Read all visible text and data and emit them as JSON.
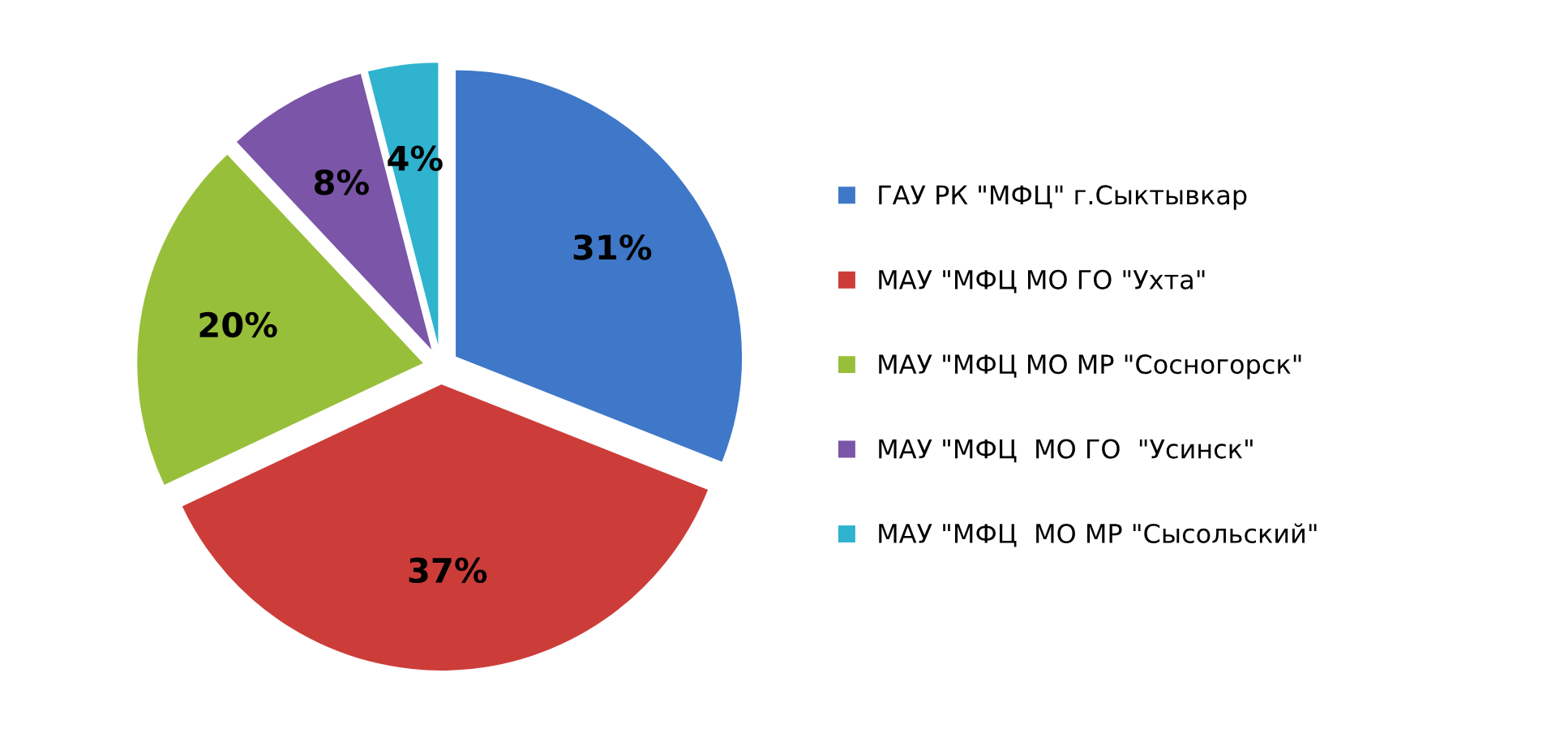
{
  "chart_data": {
    "type": "pie",
    "categories": [
      "ГАУ РК \"МФЦ\" г.Сыктывкар",
      "МАУ \"МФЦ МО ГО \"Ухта\"",
      "МАУ \"МФЦ МО МР \"Сосногорск\"",
      "МАУ \"МФЦ  МО ГО  \"Усинск\"",
      "МАУ \"МФЦ  МО МР \"Сысольский\""
    ],
    "values": [
      31,
      37,
      20,
      8,
      4
    ],
    "colors": [
      "#3f78c8",
      "#cc3d3a",
      "#98bf3a",
      "#7a55a8",
      "#2fb3cf"
    ],
    "value_labels": [
      "31%",
      "37%",
      "20%",
      "8%",
      "4%"
    ],
    "legend": "right"
  }
}
